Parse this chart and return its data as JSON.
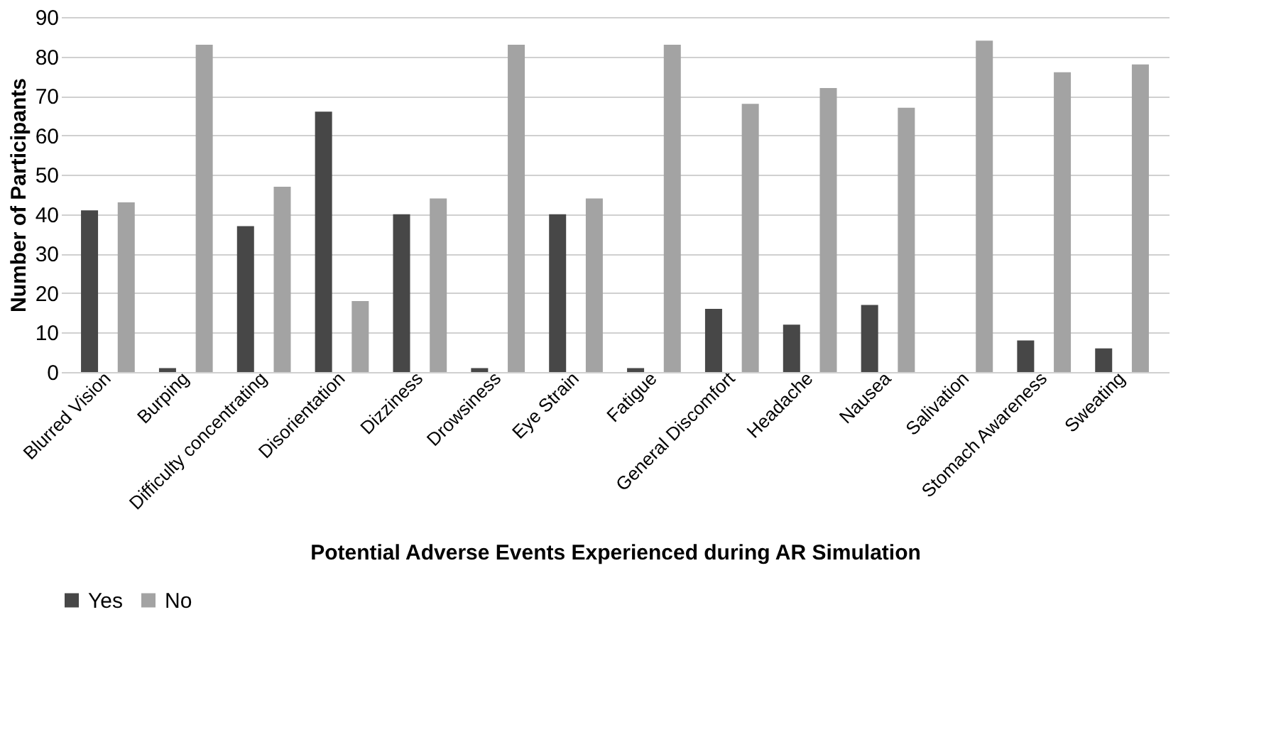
{
  "chart_data": {
    "type": "bar",
    "xlabel": "Potential Adverse Events Experienced during AR Simulation",
    "ylabel": "Number of Participants",
    "categories": [
      "Blurred Vision",
      "Burping",
      "Difficulty concentrating",
      "Disorientation",
      "Dizziness",
      "Drowsiness",
      "Eye Strain",
      "Fatigue",
      "General Discomfort",
      "Headache",
      "Nausea",
      "Salivation",
      "Stomach Awareness",
      "Sweating"
    ],
    "series": [
      {
        "name": "Yes",
        "color": "#474747",
        "values": [
          41,
          1,
          37,
          66,
          40,
          1,
          40,
          1,
          16,
          12,
          17,
          0,
          8,
          6
        ]
      },
      {
        "name": "No",
        "color": "#a3a3a3",
        "values": [
          43,
          83,
          47,
          18,
          44,
          83,
          44,
          83,
          68,
          72,
          67,
          84,
          76,
          78
        ]
      }
    ],
    "ylim": [
      0,
      90
    ],
    "yticks": [
      0,
      10,
      20,
      30,
      40,
      50,
      60,
      70,
      80,
      90
    ],
    "grid": "y",
    "legend": "bottom"
  }
}
